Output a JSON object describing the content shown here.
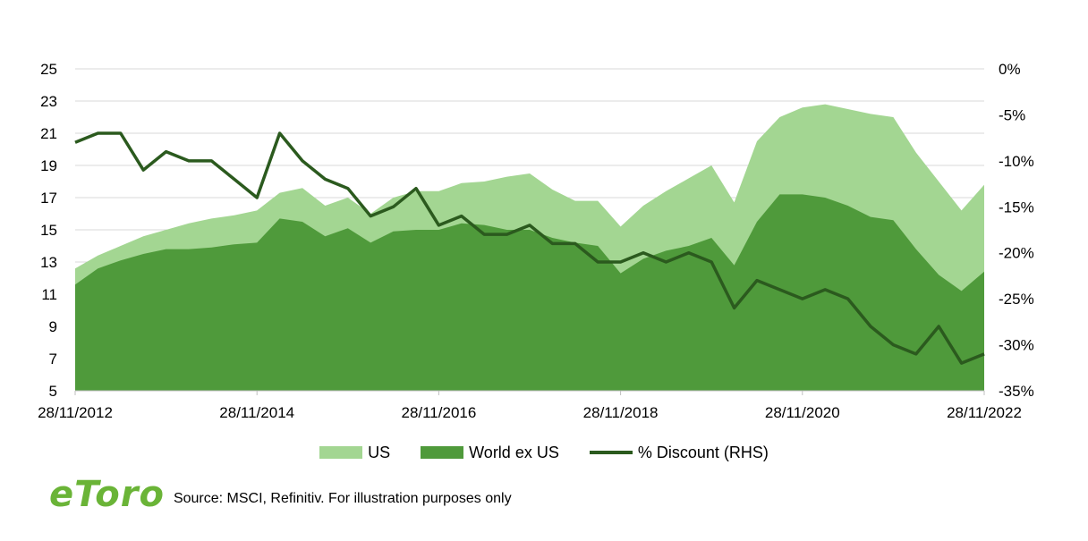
{
  "chart_data": {
    "type": "area",
    "title": "",
    "xlabel": "",
    "ylabel": "",
    "ylim": [
      5,
      25
    ],
    "y2lim": [
      -35,
      0
    ],
    "y_ticks": [
      "25",
      "23",
      "21",
      "19",
      "17",
      "15",
      "13",
      "11",
      "9",
      "7",
      "5"
    ],
    "y2_ticks": [
      "0%",
      "-5%",
      "-10%",
      "-15%",
      "-20%",
      "-25%",
      "-30%",
      "-35%"
    ],
    "x_ticks": [
      "28/11/2012",
      "28/11/2014",
      "28/11/2016",
      "28/11/2018",
      "28/11/2020",
      "28/11/2022"
    ],
    "grid": "horizontal",
    "legend_position": "bottom",
    "x": [
      "28/11/2012",
      "28/02/2013",
      "28/05/2013",
      "28/08/2013",
      "28/11/2013",
      "28/02/2014",
      "28/05/2014",
      "28/08/2014",
      "28/11/2014",
      "28/02/2015",
      "28/05/2015",
      "28/08/2015",
      "28/11/2015",
      "28/02/2016",
      "28/05/2016",
      "28/08/2016",
      "28/11/2016",
      "28/02/2017",
      "28/05/2017",
      "28/08/2017",
      "28/11/2017",
      "28/02/2018",
      "28/05/2018",
      "28/08/2018",
      "28/11/2018",
      "28/02/2019",
      "28/05/2019",
      "28/08/2019",
      "28/11/2019",
      "28/02/2020",
      "28/05/2020",
      "28/08/2020",
      "28/11/2020",
      "28/02/2021",
      "28/05/2021",
      "28/08/2021",
      "28/11/2021",
      "28/02/2022",
      "28/05/2022",
      "28/08/2022",
      "28/11/2022"
    ],
    "series": [
      {
        "name": "US",
        "axis": "left",
        "style": "area",
        "color": "#a3d692",
        "values": [
          12.6,
          13.4,
          14.0,
          14.6,
          15.0,
          15.4,
          15.7,
          15.9,
          16.2,
          17.3,
          17.6,
          16.5,
          17.0,
          16.0,
          17.0,
          17.4,
          17.4,
          17.9,
          18.0,
          18.3,
          18.5,
          17.5,
          16.8,
          16.8,
          15.2,
          16.5,
          17.4,
          18.2,
          19.0,
          16.7,
          20.5,
          22.0,
          22.6,
          22.8,
          22.5,
          22.2,
          22.0,
          19.8,
          18.0,
          16.2,
          17.8
        ]
      },
      {
        "name": "World ex US",
        "axis": "left",
        "style": "area",
        "color": "#4f9a3b",
        "values": [
          11.6,
          12.6,
          13.1,
          13.5,
          13.8,
          13.8,
          13.9,
          14.1,
          14.2,
          15.7,
          15.5,
          14.6,
          15.1,
          14.2,
          14.9,
          15.0,
          15.0,
          15.4,
          15.3,
          15.0,
          15.0,
          14.5,
          14.2,
          14.0,
          12.3,
          13.2,
          13.7,
          14.0,
          14.5,
          12.8,
          15.5,
          17.2,
          17.2,
          17.0,
          16.5,
          15.8,
          15.6,
          13.8,
          12.2,
          11.2,
          12.4
        ]
      },
      {
        "name": "% Discount (RHS)",
        "axis": "right",
        "style": "line",
        "color": "#2b5a1e",
        "values": [
          -8,
          -7,
          -7,
          -11,
          -9,
          -10,
          -10,
          -12,
          -14,
          -7,
          -10,
          -12,
          -13,
          -16,
          -15,
          -13,
          -17,
          -16,
          -18,
          -18,
          -17,
          -19,
          -19,
          -21,
          -21,
          -20,
          -21,
          -20,
          -21,
          -26,
          -23,
          -24,
          -25,
          -24,
          -25,
          -28,
          -30,
          -31,
          -28,
          -32,
          -31
        ]
      }
    ]
  },
  "legend": {
    "us": "US",
    "world_ex_us": "World ex US",
    "discount": "% Discount (RHS)"
  },
  "footer": {
    "logo": "eToro",
    "source": "Source: MSCI, Refinitiv. For illustration purposes only"
  },
  "colors": {
    "us": "#a3d692",
    "world_ex_us": "#4f9a3b",
    "discount": "#2b5a1e",
    "logo": "#6ab437",
    "grid": "#d9d9d9"
  }
}
